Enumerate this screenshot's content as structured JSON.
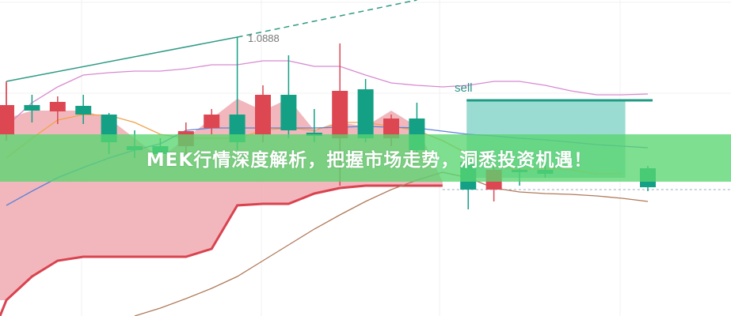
{
  "banner": {
    "headline": "MEK行情深度解析，把握市场走势，洞悉投资机遇！"
  },
  "colors": {
    "up": "#14a085",
    "down": "#dc4752",
    "cloud": "#eeaab0",
    "cloud_edge": "#d9434f",
    "upper_band": "#d88ad0",
    "fast_ma": "#f2a24a",
    "slow_ma": "#5a82d8",
    "lower_band": "#b07a5a",
    "trendline": "#2f9a86",
    "sell_box": "#8fd8cc",
    "banner": "#58d670"
  },
  "chart_data": {
    "type": "candlestick",
    "title": "",
    "grid": true,
    "annotations": {
      "peak_label": "1.0888",
      "sell_label": "sell"
    },
    "candles": [
      {
        "i": 0,
        "dir": "down",
        "o": 1.0802,
        "c": 1.0765,
        "h": 1.083,
        "l": 1.0757
      },
      {
        "i": 1,
        "dir": "up",
        "o": 1.0795,
        "c": 1.0802,
        "h": 1.0815,
        "l": 1.078
      },
      {
        "i": 2,
        "dir": "down",
        "o": 1.0806,
        "c": 1.0794,
        "h": 1.0813,
        "l": 1.0778
      },
      {
        "i": 3,
        "dir": "up",
        "o": 1.079,
        "c": 1.0801,
        "h": 1.0815,
        "l": 1.0778
      },
      {
        "i": 4,
        "dir": "up",
        "o": 1.0755,
        "c": 1.079,
        "h": 1.0792,
        "l": 1.074
      },
      {
        "i": 5,
        "dir": "up",
        "o": 1.0745,
        "c": 1.075,
        "h": 1.077,
        "l": 1.0735
      },
      {
        "i": 6,
        "dir": "up",
        "o": 1.074,
        "c": 1.075,
        "h": 1.076,
        "l": 1.073
      },
      {
        "i": 7,
        "dir": "down",
        "o": 1.0769,
        "c": 1.075,
        "h": 1.078,
        "l": 1.074
      },
      {
        "i": 8,
        "dir": "down",
        "o": 1.079,
        "c": 1.0773,
        "h": 1.0797,
        "l": 1.0765
      },
      {
        "i": 9,
        "dir": "up",
        "o": 1.0755,
        "c": 1.079,
        "h": 1.0888,
        "l": 1.0745
      },
      {
        "i": 10,
        "dir": "down",
        "o": 1.0815,
        "c": 1.0765,
        "h": 1.0827,
        "l": 1.0755
      },
      {
        "i": 11,
        "dir": "up",
        "o": 1.077,
        "c": 1.0815,
        "h": 1.0865,
        "l": 1.076
      },
      {
        "i": 12,
        "dir": "up",
        "o": 1.0763,
        "c": 1.0767,
        "h": 1.0797,
        "l": 1.0755
      },
      {
        "i": 13,
        "dir": "down",
        "o": 1.082,
        "c": 1.076,
        "h": 1.088,
        "l": 1.07
      },
      {
        "i": 14,
        "dir": "up",
        "o": 1.076,
        "c": 1.0822,
        "h": 1.0835,
        "l": 1.0755
      },
      {
        "i": 15,
        "dir": "down",
        "o": 1.0785,
        "c": 1.076,
        "h": 1.079,
        "l": 1.075
      },
      {
        "i": 16,
        "dir": "up",
        "o": 1.0745,
        "c": 1.0785,
        "h": 1.0805,
        "l": 1.074
      },
      {
        "i": 18,
        "dir": "up",
        "o": 1.0695,
        "c": 1.073,
        "h": 1.0735,
        "l": 1.067
      },
      {
        "i": 19,
        "dir": "down",
        "o": 1.072,
        "c": 1.0695,
        "h": 1.0725,
        "l": 1.068
      },
      {
        "i": 20,
        "dir": "up",
        "o": 1.0717,
        "c": 1.072,
        "h": 1.0725,
        "l": 1.07
      },
      {
        "i": 21,
        "dir": "up",
        "o": 1.0715,
        "c": 1.072,
        "h": 1.0725,
        "l": 1.071
      },
      {
        "i": 25,
        "dir": "up",
        "o": 1.0698,
        "c": 1.0722,
        "h": 1.0725,
        "l": 1.0693
      }
    ],
    "lines": [
      {
        "key": "upper_band",
        "start": 0,
        "values": [
          1.0775,
          1.0805,
          1.0825,
          1.084,
          1.0843,
          1.0845,
          1.0845,
          1.0848,
          1.0853,
          1.0853,
          1.0858,
          1.0858,
          1.0851,
          1.0851,
          1.084,
          1.083,
          1.0827,
          1.0825,
          1.0827,
          1.0832,
          1.0832,
          1.0827,
          1.082,
          1.0815,
          1.0815,
          1.0816
        ]
      },
      {
        "key": "fast_ma",
        "start": 0,
        "values": [
          1.0735,
          1.076,
          1.0783,
          1.079,
          1.0789,
          1.078,
          1.0765,
          1.076,
          1.076,
          1.076,
          1.077,
          1.0773,
          1.077,
          1.078,
          1.078,
          1.0775,
          1.077,
          1.0757,
          1.074,
          1.0725,
          1.072,
          1.0722,
          1.072,
          1.0715,
          1.0715
        ]
      },
      {
        "key": "slow_ma",
        "start": 0,
        "values": [
          1.0675,
          1.0693,
          1.071,
          1.0723,
          1.0735,
          1.0745,
          1.0753,
          1.077,
          1.0773,
          1.0773,
          1.0773,
          1.0773,
          1.0773,
          1.0774,
          1.0775,
          1.0774,
          1.0773,
          1.0769,
          1.0765,
          1.0763,
          1.076,
          1.0758,
          1.0755,
          1.0752,
          1.075,
          1.0748
        ]
      },
      {
        "key": "lower_band",
        "start": 5,
        "values": [
          1.0535,
          1.0545,
          1.0557,
          1.057,
          1.0585,
          1.0605,
          1.0625,
          1.0645,
          1.0663,
          1.068,
          1.0695,
          1.0707,
          1.0717,
          1.071,
          1.0697,
          1.0692,
          1.069,
          1.0689,
          1.0687,
          1.0684,
          1.068
        ]
      }
    ],
    "cloud": {
      "upper": [
        1.0785,
        1.0795,
        1.0795,
        1.0795,
        1.0785,
        1.076,
        1.0735,
        1.076,
        1.0785,
        1.081,
        1.0795,
        1.081,
        1.077,
        1.078,
        1.0775,
        1.0795,
        1.0775,
        1.0705
      ],
      "lower": [
        1.0555,
        1.0585,
        1.0605,
        1.061,
        1.061,
        1.061,
        1.061,
        1.061,
        1.062,
        1.0675,
        1.0677,
        1.0677,
        1.069,
        1.0697,
        1.07,
        1.07,
        1.07,
        1.07
      ]
    },
    "trendline": {
      "from": {
        "i": 0,
        "p": 1.0832
      },
      "peak": {
        "i": 9,
        "p": 1.0888
      },
      "to": {
        "i": 16,
        "p": 1.0935
      }
    },
    "sell_zone": {
      "from_i": 18,
      "to_i": 24,
      "top": 1.0808,
      "bottom": 1.071,
      "line_to_i": 25
    },
    "reference_line": 1.0695
  }
}
